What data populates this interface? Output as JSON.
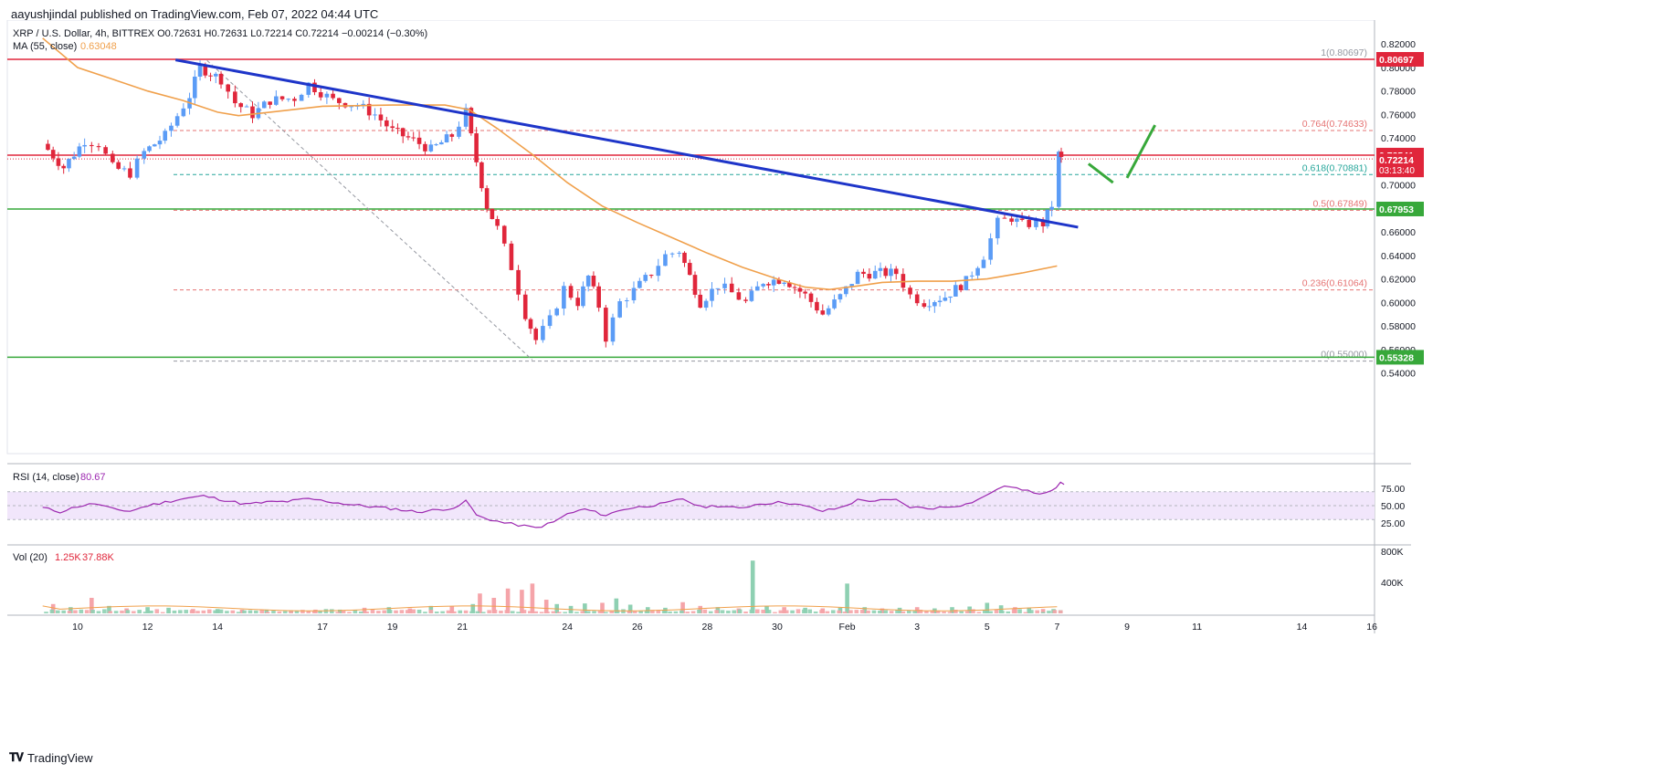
{
  "header": {
    "publisher": "aayushjindal published on TradingView.com, Feb 07, 2022 04:44 UTC"
  },
  "footer": {
    "brand": "TradingView",
    "logo_icon": "tradingview-logo-icon"
  },
  "colors": {
    "up": "#5b9cf6",
    "down": "#e0263b",
    "ma": "#f0a04b",
    "trendline": "#1e35c9",
    "resistance": "#e0263b",
    "support": "#37a83a",
    "fib": "#e57373",
    "rsi": "#9c27b0",
    "rsi_band": "#f1e6fb",
    "vol_up": "#8ed0b2",
    "vol_down": "#f5a4a9"
  },
  "chart_data": {
    "type": "candlestick",
    "symbol_line": "XRP / U.S. Dollar, 4h, BITTREX",
    "ohlc_text": "O0.72631  H0.72631  L0.72214  C0.72214  −0.00214 (−0.30%)",
    "ma_label": "MA (55, close)",
    "ma_value": "0.63048",
    "price_axis": {
      "range": [
        0.535,
        0.822
      ],
      "ticks": [
        "0.82000",
        "0.80000",
        "0.78000",
        "0.76000",
        "0.74000",
        "0.72000",
        "0.70000",
        "0.68000",
        "0.66000",
        "0.64000",
        "0.62000",
        "0.60000",
        "0.58000",
        "0.56000",
        "0.54000"
      ]
    },
    "x_axis": {
      "ticks": [
        {
          "label": "10",
          "day": 9
        },
        {
          "label": "12",
          "day": 11
        },
        {
          "label": "14",
          "day": 13
        },
        {
          "label": "17",
          "day": 16
        },
        {
          "label": "19",
          "day": 18
        },
        {
          "label": "21",
          "day": 20
        },
        {
          "label": "24",
          "day": 23
        },
        {
          "label": "26",
          "day": 25
        },
        {
          "label": "28",
          "day": 27
        },
        {
          "label": "30",
          "day": 29
        },
        {
          "label": "Feb",
          "day": 31
        },
        {
          "label": "3",
          "day": 33
        },
        {
          "label": "5",
          "day": 35
        },
        {
          "label": "7",
          "day": 37
        },
        {
          "label": "9",
          "day": 39
        },
        {
          "label": "11",
          "day": 41
        },
        {
          "label": "14",
          "day": 44
        },
        {
          "label": "16",
          "day": 46
        }
      ]
    },
    "candle_path": [
      [
        8.0,
        0.735
      ],
      [
        8.6,
        0.715
      ],
      [
        9.2,
        0.738
      ],
      [
        9.6,
        0.735
      ],
      [
        10.0,
        0.715
      ],
      [
        10.5,
        0.71
      ],
      [
        10.9,
        0.728
      ],
      [
        11.5,
        0.742
      ],
      [
        12.2,
        0.776
      ],
      [
        12.5,
        0.8
      ],
      [
        13.1,
        0.79
      ],
      [
        13.5,
        0.77
      ],
      [
        14.0,
        0.76
      ],
      [
        14.5,
        0.772
      ],
      [
        15.2,
        0.774
      ],
      [
        15.6,
        0.786
      ],
      [
        16.3,
        0.772
      ],
      [
        17.0,
        0.768
      ],
      [
        17.5,
        0.76
      ],
      [
        18.0,
        0.746
      ],
      [
        18.6,
        0.738
      ],
      [
        19.1,
        0.73
      ],
      [
        19.7,
        0.742
      ],
      [
        20.1,
        0.762
      ],
      [
        20.4,
        0.72
      ],
      [
        20.7,
        0.682
      ],
      [
        21.0,
        0.663
      ],
      [
        21.4,
        0.63
      ],
      [
        21.8,
        0.59
      ],
      [
        22.1,
        0.568
      ],
      [
        22.5,
        0.585
      ],
      [
        22.9,
        0.612
      ],
      [
        23.3,
        0.6
      ],
      [
        23.6,
        0.622
      ],
      [
        23.9,
        0.597
      ],
      [
        24.1,
        0.57
      ],
      [
        24.5,
        0.6
      ],
      [
        24.9,
        0.61
      ],
      [
        25.4,
        0.625
      ],
      [
        25.8,
        0.64
      ],
      [
        26.2,
        0.644
      ],
      [
        26.5,
        0.622
      ],
      [
        26.8,
        0.6
      ],
      [
        27.3,
        0.615
      ],
      [
        27.7,
        0.608
      ],
      [
        28.1,
        0.6
      ],
      [
        28.6,
        0.618
      ],
      [
        29.2,
        0.62
      ],
      [
        29.8,
        0.606
      ],
      [
        30.3,
        0.59
      ],
      [
        30.8,
        0.605
      ],
      [
        31.3,
        0.624
      ],
      [
        31.8,
        0.625
      ],
      [
        32.4,
        0.625
      ],
      [
        32.8,
        0.606
      ],
      [
        33.2,
        0.6
      ],
      [
        33.8,
        0.605
      ],
      [
        34.4,
        0.618
      ],
      [
        34.9,
        0.64
      ],
      [
        35.3,
        0.668
      ],
      [
        35.7,
        0.672
      ],
      [
        36.0,
        0.666
      ],
      [
        36.4,
        0.668
      ],
      [
        36.6,
        0.667
      ],
      [
        36.85,
        0.683
      ],
      [
        37.05,
        0.726
      ],
      [
        37.12,
        0.722
      ]
    ],
    "ma55_path": [
      [
        8.0,
        0.825
      ],
      [
        9.0,
        0.8
      ],
      [
        10.0,
        0.79
      ],
      [
        11.0,
        0.78
      ],
      [
        12.0,
        0.772
      ],
      [
        13.0,
        0.762
      ],
      [
        13.6,
        0.759
      ],
      [
        14.5,
        0.762
      ],
      [
        16.0,
        0.767
      ],
      [
        18.0,
        0.768
      ],
      [
        19.5,
        0.768
      ],
      [
        20.2,
        0.764
      ],
      [
        21.0,
        0.748
      ],
      [
        22.0,
        0.726
      ],
      [
        23.0,
        0.702
      ],
      [
        24.0,
        0.682
      ],
      [
        25.0,
        0.668
      ],
      [
        26.0,
        0.655
      ],
      [
        27.0,
        0.642
      ],
      [
        28.0,
        0.63
      ],
      [
        29.0,
        0.62
      ],
      [
        29.8,
        0.613
      ],
      [
        30.5,
        0.611
      ],
      [
        31.3,
        0.614
      ],
      [
        32.0,
        0.617
      ],
      [
        33.0,
        0.618
      ],
      [
        34.0,
        0.618
      ],
      [
        35.0,
        0.62
      ],
      [
        36.0,
        0.625
      ],
      [
        37.0,
        0.631
      ]
    ],
    "trendline": {
      "from": [
        11.8,
        0.8065
      ],
      "to": [
        37.6,
        0.664
      ]
    },
    "fib_dashed_diagonal": {
      "from": [
        12.7,
        0.806
      ],
      "to": [
        22.0,
        0.551
      ]
    },
    "horizontal_levels": [
      {
        "kind": "resistance",
        "value": 0.80697,
        "label": "0.80697"
      },
      {
        "kind": "resistance",
        "value": 0.72541,
        "label": "0.72541"
      },
      {
        "kind": "support",
        "value": 0.67953,
        "label": "0.67953"
      },
      {
        "kind": "support",
        "value": 0.55328,
        "label": "0.55328"
      }
    ],
    "fib_levels": [
      {
        "ratio": "1",
        "value": 0.80697,
        "label": "1(0.80697)"
      },
      {
        "ratio": "0.764",
        "value": 0.74633,
        "label": "0.764(0.74633)"
      },
      {
        "ratio": "0.618",
        "value": 0.70881,
        "label": "0.618(0.70881)"
      },
      {
        "ratio": "0.5",
        "value": 0.67849,
        "label": "0.5(0.67849)"
      },
      {
        "ratio": "0.236",
        "value": 0.61064,
        "label": "0.236(0.61064)"
      },
      {
        "ratio": "0",
        "value": 0.55,
        "label": "0(0.55000)"
      }
    ],
    "last_price": {
      "value": 0.72214,
      "label": "0.72214",
      "countdown": "03:13:40"
    },
    "projection_arrows": [
      {
        "from": [
          37.9,
          0.718
        ],
        "to": [
          38.6,
          0.702
        ]
      },
      {
        "from": [
          39.0,
          0.706
        ],
        "to": [
          39.8,
          0.751
        ]
      }
    ],
    "rsi": {
      "label": "RSI (14, close)",
      "value": "80.67",
      "range": [
        0,
        100
      ],
      "ticks": [
        "75.00",
        "50.00",
        "25.00"
      ],
      "band": [
        30,
        70
      ],
      "path": [
        [
          8.0,
          47
        ],
        [
          8.5,
          41
        ],
        [
          9.0,
          49
        ],
        [
          9.5,
          53
        ],
        [
          10.0,
          45
        ],
        [
          10.5,
          42
        ],
        [
          11.0,
          50
        ],
        [
          11.5,
          55
        ],
        [
          12.0,
          60
        ],
        [
          12.6,
          64
        ],
        [
          13.2,
          58
        ],
        [
          13.8,
          52
        ],
        [
          14.4,
          55
        ],
        [
          15.0,
          56
        ],
        [
          15.6,
          60
        ],
        [
          16.3,
          55
        ],
        [
          16.9,
          51
        ],
        [
          17.5,
          48
        ],
        [
          18.1,
          45
        ],
        [
          18.7,
          41
        ],
        [
          19.3,
          44
        ],
        [
          19.9,
          48
        ],
        [
          20.1,
          58
        ],
        [
          20.4,
          36
        ],
        [
          20.8,
          30
        ],
        [
          21.2,
          25
        ],
        [
          21.6,
          22
        ],
        [
          22.1,
          18
        ],
        [
          22.6,
          26
        ],
        [
          23.0,
          38
        ],
        [
          23.5,
          45
        ],
        [
          24.1,
          36
        ],
        [
          24.6,
          45
        ],
        [
          25.2,
          49
        ],
        [
          25.8,
          53
        ],
        [
          26.3,
          60
        ],
        [
          26.8,
          48
        ],
        [
          27.3,
          50
        ],
        [
          27.9,
          46
        ],
        [
          28.5,
          53
        ],
        [
          29.2,
          55
        ],
        [
          29.8,
          49
        ],
        [
          30.3,
          42
        ],
        [
          30.8,
          47
        ],
        [
          31.3,
          58
        ],
        [
          31.8,
          57
        ],
        [
          32.4,
          58
        ],
        [
          32.8,
          48
        ],
        [
          33.3,
          46
        ],
        [
          33.8,
          48
        ],
        [
          34.4,
          52
        ],
        [
          34.9,
          62
        ],
        [
          35.3,
          75
        ],
        [
          35.7,
          78
        ],
        [
          36.0,
          72
        ],
        [
          36.5,
          68
        ],
        [
          36.85,
          73
        ],
        [
          37.1,
          82
        ],
        [
          37.2,
          80.67
        ]
      ]
    },
    "volume": {
      "label": "Vol (20)",
      "value1": "1.25K",
      "value2": "37.88K",
      "range": [
        0,
        800000
      ],
      "ticks": [
        "800K",
        "400K"
      ],
      "bars": [
        [
          8.3,
          0.15,
          0
        ],
        [
          8.8,
          0.1,
          1
        ],
        [
          9.4,
          0.25,
          0
        ],
        [
          9.9,
          0.12,
          1
        ],
        [
          10.4,
          0.08,
          0
        ],
        [
          11.0,
          0.1,
          1
        ],
        [
          11.6,
          0.09,
          1
        ],
        [
          12.3,
          0.07,
          0
        ],
        [
          13.0,
          0.07,
          1
        ],
        [
          13.7,
          0.06,
          0
        ],
        [
          14.4,
          0.06,
          1
        ],
        [
          15.1,
          0.05,
          1
        ],
        [
          15.8,
          0.06,
          0
        ],
        [
          16.5,
          0.06,
          1
        ],
        [
          17.2,
          0.09,
          0
        ],
        [
          17.9,
          0.1,
          1
        ],
        [
          18.5,
          0.08,
          0
        ],
        [
          19.1,
          0.12,
          1
        ],
        [
          19.7,
          0.11,
          0
        ],
        [
          20.3,
          0.15,
          1
        ],
        [
          20.5,
          0.32,
          0
        ],
        [
          20.9,
          0.25,
          0
        ],
        [
          21.3,
          0.4,
          0
        ],
        [
          21.7,
          0.38,
          0
        ],
        [
          22.0,
          0.48,
          0
        ],
        [
          22.4,
          0.22,
          0
        ],
        [
          22.7,
          0.15,
          1
        ],
        [
          23.1,
          0.12,
          1
        ],
        [
          23.5,
          0.16,
          1
        ],
        [
          24.0,
          0.17,
          0
        ],
        [
          24.4,
          0.24,
          1
        ],
        [
          24.8,
          0.14,
          1
        ],
        [
          25.3,
          0.1,
          1
        ],
        [
          25.8,
          0.09,
          1
        ],
        [
          26.3,
          0.18,
          0
        ],
        [
          26.8,
          0.12,
          0
        ],
        [
          27.3,
          0.1,
          1
        ],
        [
          27.9,
          0.08,
          0
        ],
        [
          28.3,
          0.85,
          1
        ],
        [
          28.7,
          0.12,
          1
        ],
        [
          29.2,
          0.1,
          0
        ],
        [
          29.8,
          0.09,
          1
        ],
        [
          30.3,
          0.08,
          0
        ],
        [
          30.8,
          0.09,
          1
        ],
        [
          31.0,
          0.48,
          1
        ],
        [
          31.5,
          0.1,
          1
        ],
        [
          32.0,
          0.08,
          0
        ],
        [
          32.5,
          0.09,
          1
        ],
        [
          33.0,
          0.1,
          0
        ],
        [
          33.5,
          0.08,
          1
        ],
        [
          34.0,
          0.1,
          1
        ],
        [
          34.5,
          0.11,
          1
        ],
        [
          35.0,
          0.17,
          1
        ],
        [
          35.4,
          0.13,
          1
        ],
        [
          35.8,
          0.1,
          0
        ],
        [
          36.2,
          0.09,
          1
        ],
        [
          36.6,
          0.07,
          0
        ],
        [
          36.9,
          0.07,
          1
        ],
        [
          37.1,
          0.05,
          1
        ]
      ]
    }
  }
}
